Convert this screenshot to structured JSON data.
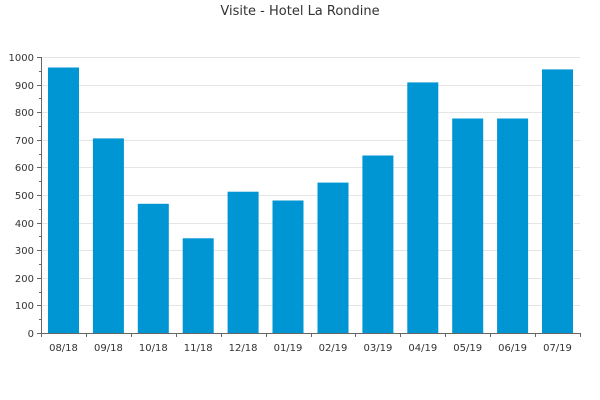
{
  "chart_data": {
    "type": "bar",
    "title": "Visite - Hotel La Rondine",
    "xlabel": "",
    "ylabel": "",
    "categories": [
      "08/18",
      "09/18",
      "10/18",
      "11/18",
      "12/18",
      "01/19",
      "02/19",
      "03/19",
      "04/19",
      "05/19",
      "06/19",
      "07/19"
    ],
    "values": [
      962,
      705,
      468,
      343,
      512,
      480,
      545,
      643,
      908,
      777,
      777,
      955
    ],
    "ylim": [
      0,
      1000
    ],
    "yticks": [
      0,
      100,
      200,
      300,
      400,
      500,
      600,
      700,
      800,
      900,
      1000
    ],
    "grid": true,
    "legend": "none",
    "bar_color": "#0095d3",
    "grid_color": "#e5e5e5",
    "axis_color": "#666666"
  }
}
